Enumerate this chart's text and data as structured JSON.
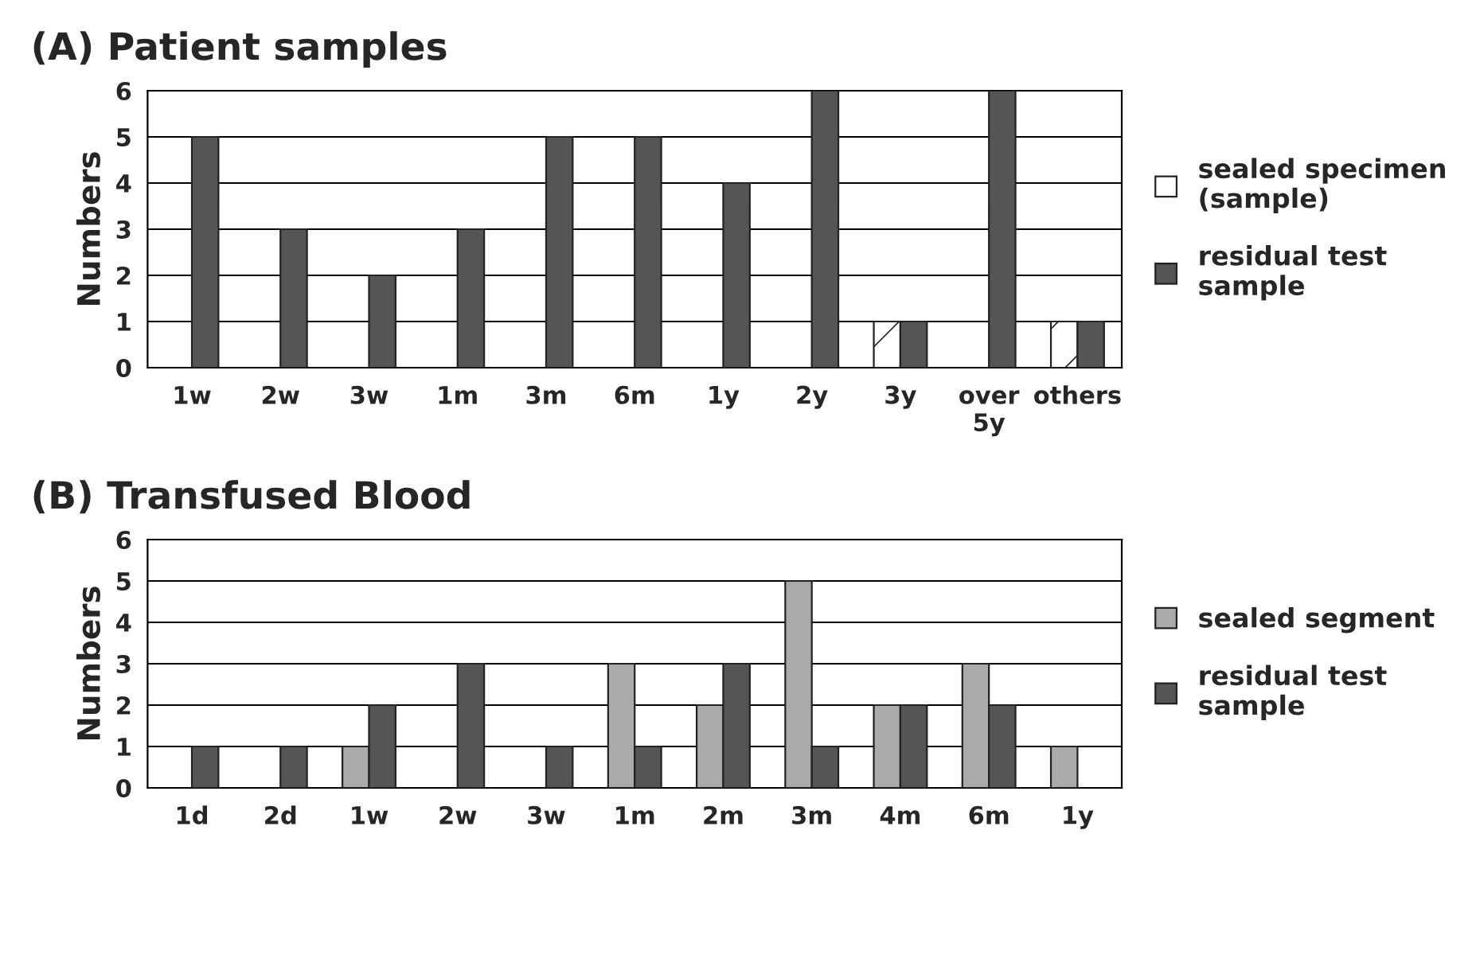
{
  "chart_data": [
    {
      "type": "bar",
      "title": "(A) Patient samples",
      "ylabel": "Numbers",
      "categories": [
        "1w",
        "2w",
        "3w",
        "1m",
        "3m",
        "6m",
        "1y",
        "2y",
        "3y",
        "over\n5y",
        "others"
      ],
      "series": [
        {
          "name": "sealed specimen\n(sample)",
          "color": "#ffffff",
          "values": [
            null,
            null,
            null,
            null,
            null,
            null,
            null,
            null,
            1,
            null,
            1
          ]
        },
        {
          "name": "residual test\nsample",
          "color": "#555555",
          "values": [
            5,
            3,
            2,
            3,
            5,
            5,
            4,
            6,
            1,
            6,
            1
          ]
        }
      ],
      "ylim": [
        0,
        6
      ],
      "yticks": [
        0,
        1,
        2,
        3,
        4,
        5,
        6
      ],
      "grid": "y",
      "legend": "right"
    },
    {
      "type": "bar",
      "title": "(B) Transfused Blood",
      "ylabel": "Numbers",
      "categories": [
        "1d",
        "2d",
        "1w",
        "2w",
        "3w",
        "1m",
        "2m",
        "3m",
        "4m",
        "6m",
        "1y"
      ],
      "series": [
        {
          "name": "sealed segment",
          "color": "#aaaaaa",
          "values": [
            null,
            null,
            1,
            null,
            null,
            3,
            2,
            5,
            2,
            3,
            1
          ]
        },
        {
          "name": "residual test\nsample",
          "color": "#555555",
          "values": [
            1,
            1,
            2,
            3,
            1,
            1,
            3,
            1,
            2,
            2,
            null
          ]
        }
      ],
      "ylim": [
        0,
        6
      ],
      "yticks": [
        0,
        1,
        2,
        3,
        4,
        5,
        6
      ],
      "grid": "y",
      "legend": "right"
    }
  ]
}
